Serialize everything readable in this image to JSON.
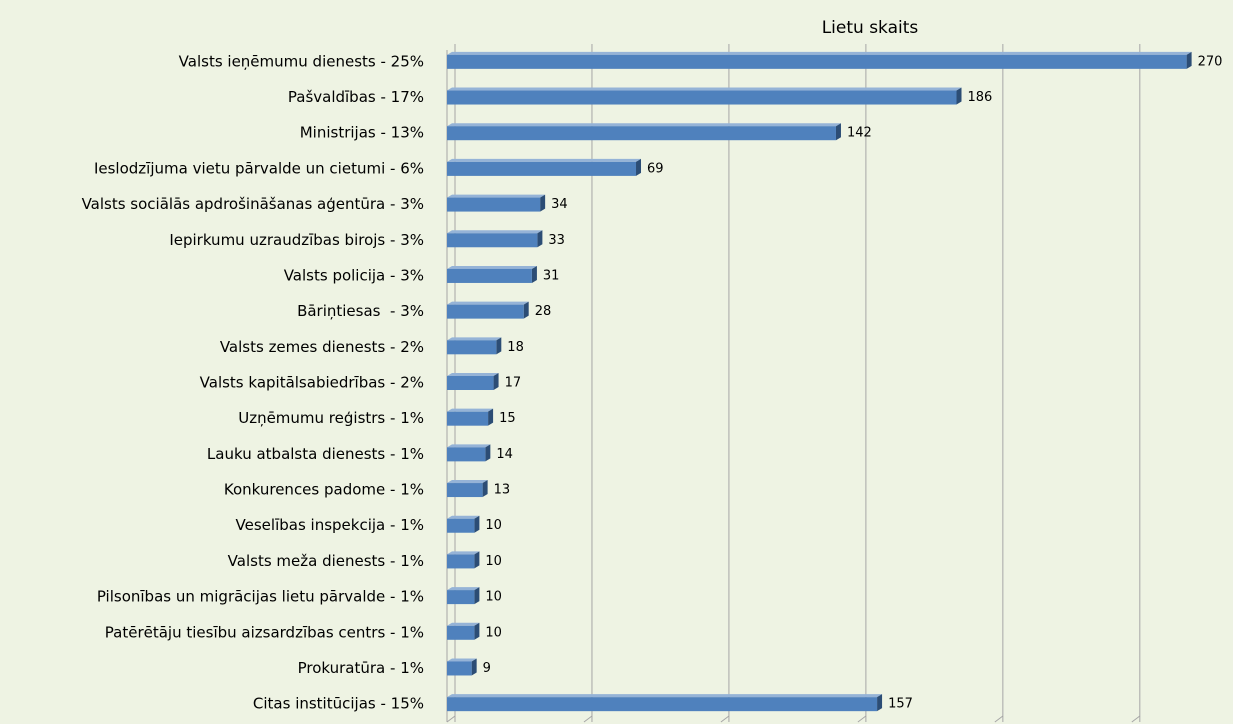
{
  "chart_data": {
    "type": "hbar",
    "x_label": "Lietu skaits",
    "categories": [
      "Valsts ieņēmumu dienests - 25%",
      "Pašvaldības - 17%",
      "Ministrijas - 13%",
      "Ieslodzījuma vietu pārvalde un cietumi - 6%",
      "Valsts sociālās apdrošināšanas aģentūra - 3%",
      "Iepirkumu uzraudzības birojs - 3%",
      "Valsts policija - 3%",
      "Bāriņtiesas  - 3%",
      "Valsts zemes dienests - 2%",
      "Valsts kapitālsabiedrības - 2%",
      "Uzņēmumu reģistrs - 1%",
      "Lauku atbalsta dienests - 1%",
      "Konkurences padome - 1%",
      "Veselības inspekcija - 1%",
      "Valsts meža dienests - 1%",
      "Pilsonības un migrācijas lietu pārvalde - 1%",
      "Patērētāju tiesību aizsardzības centrs - 1%",
      "Prokuratūra - 1%",
      "Citas institūcijas - 15%"
    ],
    "values": [
      270,
      186,
      142,
      69,
      34,
      33,
      31,
      28,
      18,
      17,
      15,
      14,
      13,
      10,
      10,
      10,
      10,
      9,
      157
    ],
    "color": "#4f81bd",
    "xlim": [
      0,
      280
    ],
    "xticks": [
      0,
      50,
      100,
      150,
      200,
      250
    ],
    "grid": true
  }
}
